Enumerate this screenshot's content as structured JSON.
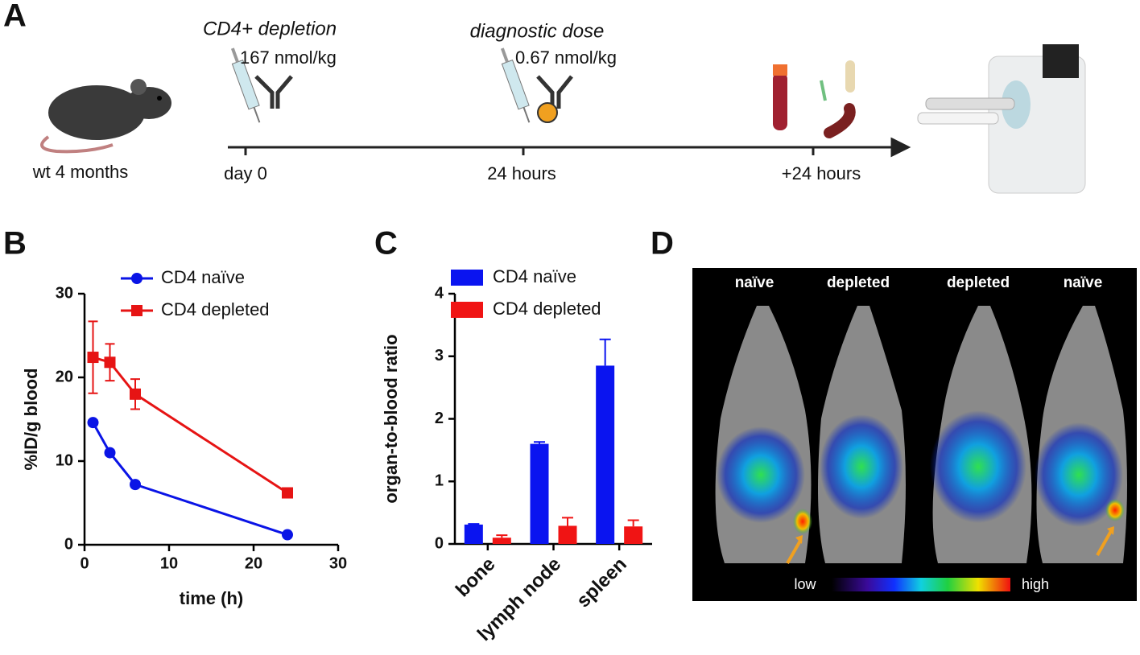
{
  "panels": {
    "letters": [
      "A",
      "B",
      "C",
      "D"
    ],
    "a": {
      "step1": "CD4+ depletion",
      "dose1": "167 nmol/kg",
      "step2": "diagnostic dose",
      "dose2": "0.67 nmol/kg",
      "mouse": "wt 4 months",
      "t0": "day 0",
      "t1": "24 hours",
      "t2": "+24 hours"
    },
    "d": {
      "columns": [
        "naïve",
        "depleted",
        "depleted",
        "naïve"
      ],
      "low": "low",
      "high": "high"
    }
  },
  "chart_data": [
    {
      "type": "line",
      "x": [
        1,
        3,
        6,
        24
      ],
      "xlabel": "time (h)",
      "ylabel": "%ID/g blood",
      "xlim": [
        0,
        30
      ],
      "xticks": [
        0,
        10,
        20,
        30
      ],
      "ylim": [
        0,
        30
      ],
      "yticks": [
        0,
        10,
        20,
        30
      ],
      "series": [
        {
          "name": "CD4 naïve",
          "color": "#0a14e6",
          "marker": "circle",
          "values": [
            14.6,
            11.0,
            7.2,
            1.2
          ],
          "errors": [
            0.3,
            0.3,
            0.3,
            0.2
          ]
        },
        {
          "name": "CD4 depleted",
          "color": "#e61414",
          "marker": "square",
          "values": [
            22.4,
            21.8,
            18.0,
            6.2
          ],
          "errors": [
            4.3,
            2.2,
            1.8,
            0.3
          ]
        }
      ]
    },
    {
      "type": "bar",
      "categories": [
        "bone",
        "lymph node",
        "spleen"
      ],
      "ylabel": "organ-to-blood ratio",
      "ylim": [
        0,
        4
      ],
      "yticks": [
        0,
        1,
        2,
        3,
        4
      ],
      "series": [
        {
          "name": "CD4 naïve",
          "color": "#0a14f0",
          "values": [
            0.31,
            1.6,
            2.85
          ],
          "errors": [
            0.01,
            0.03,
            0.42
          ]
        },
        {
          "name": "CD4 depleted",
          "color": "#f01414",
          "values": [
            0.1,
            0.29,
            0.28
          ],
          "errors": [
            0.04,
            0.13,
            0.1
          ]
        }
      ]
    }
  ]
}
